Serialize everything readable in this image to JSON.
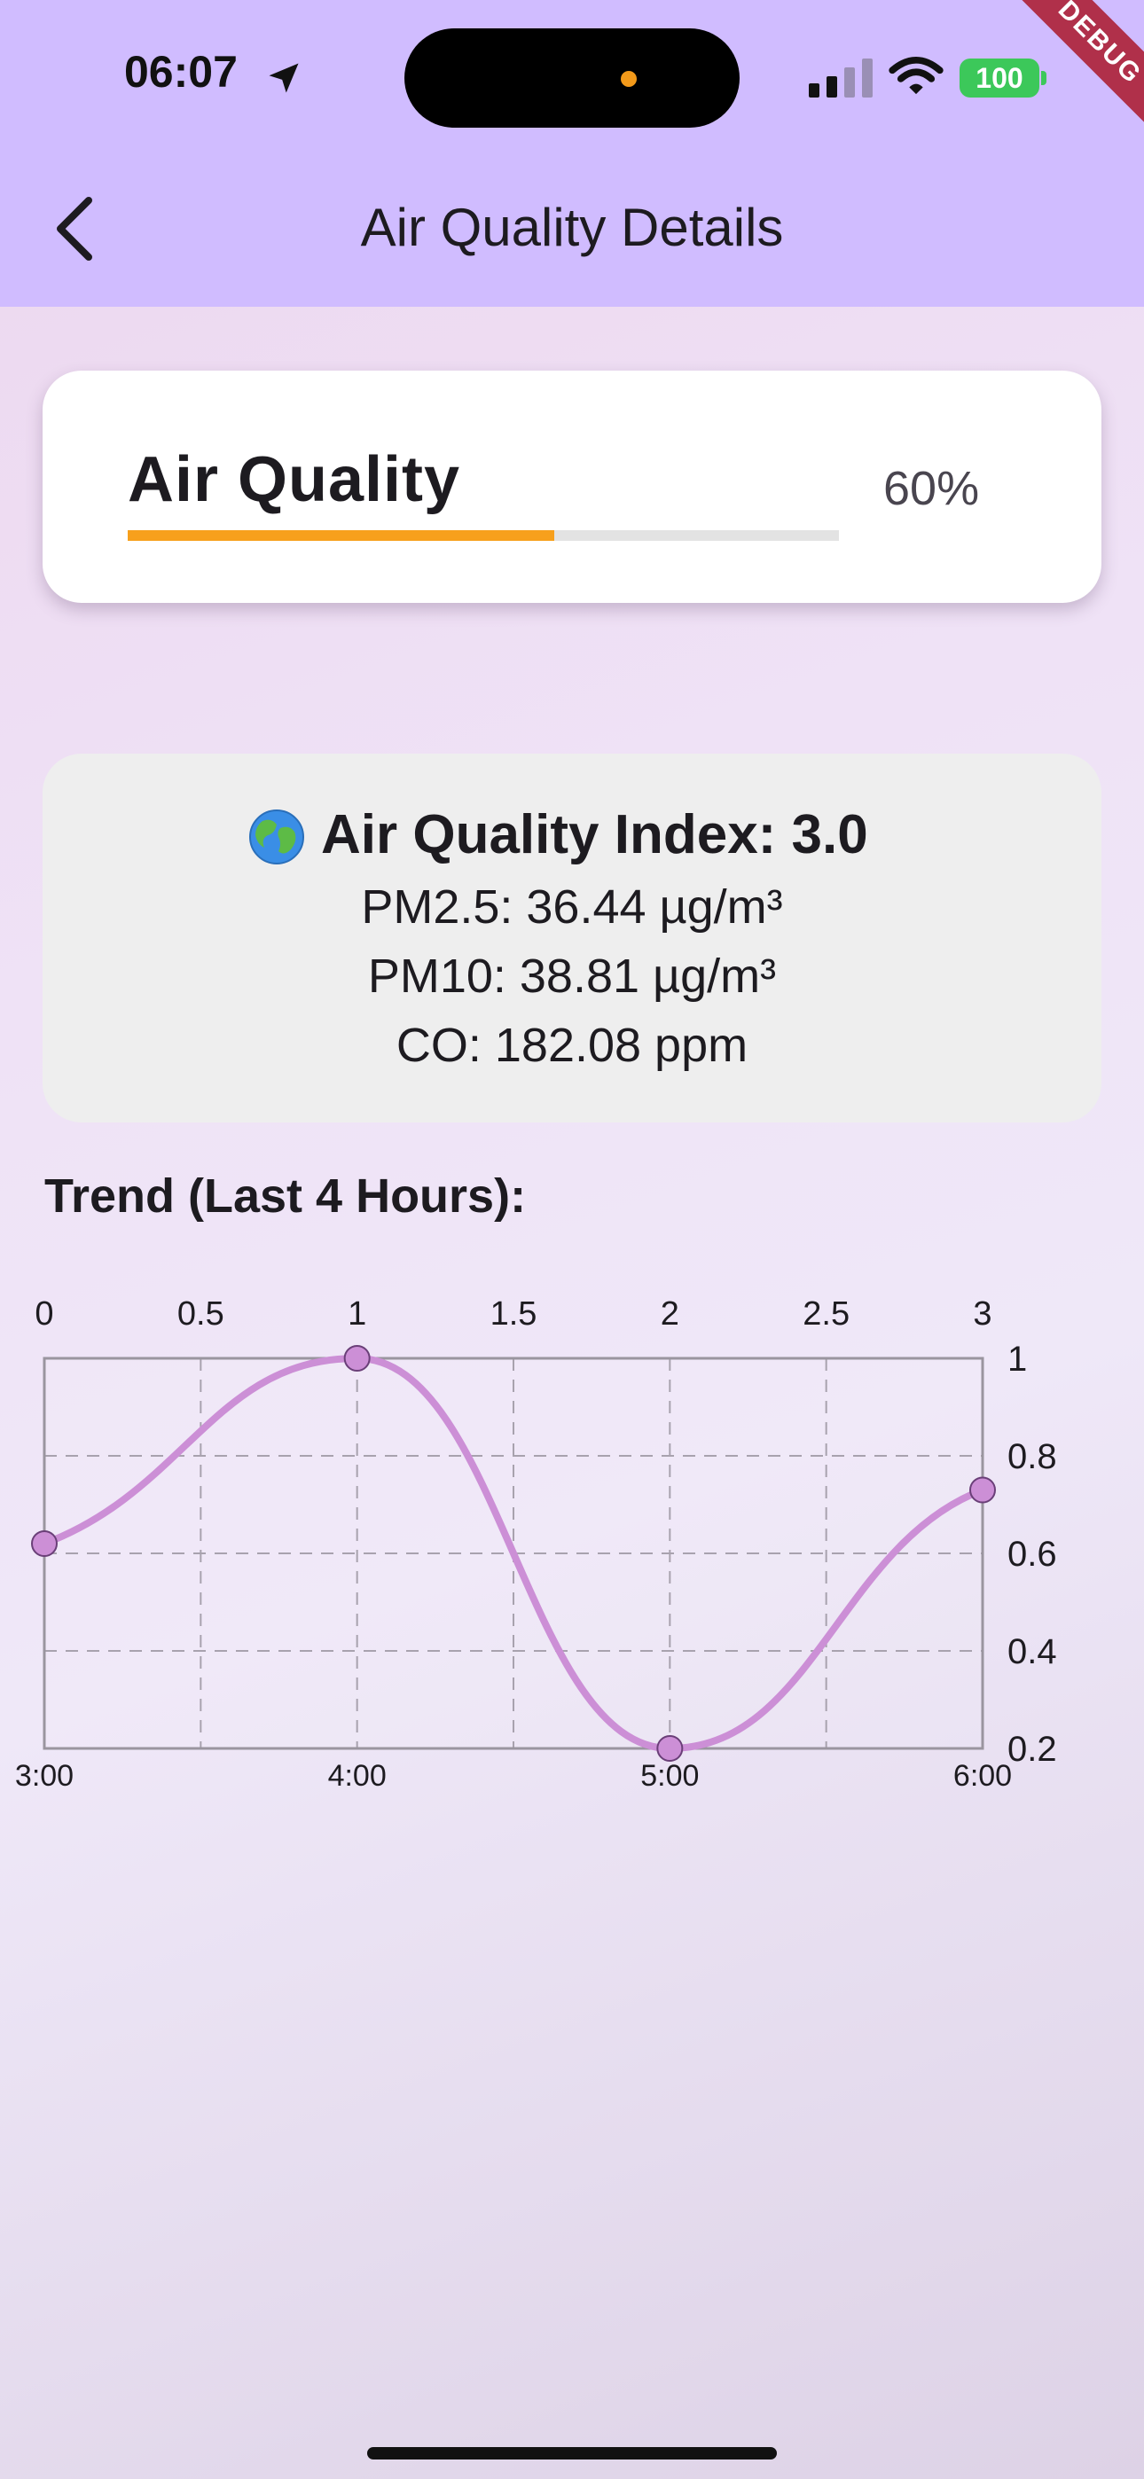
{
  "status_bar": {
    "time": "06:07",
    "battery": "100",
    "debug_label": "DEBUG",
    "icons": [
      "location-arrow-icon",
      "cellular-signal-icon",
      "wifi-icon",
      "battery-icon"
    ]
  },
  "app_bar": {
    "title": "Air Quality Details",
    "back_icon": "chevron-left-icon"
  },
  "air_quality_card": {
    "title": "Air Quality",
    "percent_label": "60%",
    "progress": 0.6,
    "progress_color": "#f7a01c"
  },
  "aqi_card": {
    "icon": "globe-icon",
    "title": "Air Quality Index: 3.0",
    "pm25": "PM2.5: 36.44 µg/m³",
    "pm10": "PM10: 38.81 µg/m³",
    "co": "CO: 182.08 ppm"
  },
  "trend": {
    "title": "Trend (Last 4 Hours):"
  },
  "chart_data": {
    "type": "line",
    "x": [
      0,
      1,
      2,
      3
    ],
    "values": [
      0.62,
      1.0,
      0.2,
      0.73
    ],
    "x_top_ticks": [
      "0",
      "0.5",
      "1",
      "1.5",
      "2",
      "2.5",
      "3"
    ],
    "x_bottom_ticks": [
      "3:00",
      "4:00",
      "5:00",
      "6:00"
    ],
    "y_ticks": [
      "1",
      "0.8",
      "0.6",
      "0.4",
      "0.2"
    ],
    "xlim": [
      0,
      3
    ],
    "ylim": [
      0.2,
      1.0
    ],
    "line_color": "#cc8fd6",
    "curved": true,
    "grid": true,
    "y_axis_side": "right",
    "title": "",
    "xlabel": "",
    "ylabel": ""
  },
  "colors": {
    "app_bar": "#d0bcff",
    "card": "#ffffff",
    "info_card": "#eeeeee",
    "debug_ribbon": "#b0304a"
  }
}
